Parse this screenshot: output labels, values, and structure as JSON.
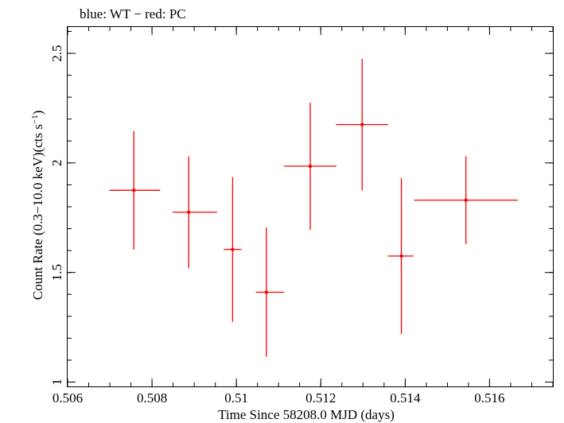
{
  "title": "blue: WT − red: PC",
  "chart_data": {
    "type": "scatter",
    "title": "blue: WT − red: PC",
    "xlabel": "Time Since 58208.0 MJD (days)",
    "ylabel_main": "Count Rate (0.3−10.0 keV)(cts s",
    "ylabel_sup": "−1",
    "ylabel_end": ")",
    "xlim": [
      0.506,
      0.5175
    ],
    "ylim": [
      0.98,
      2.62
    ],
    "log_y": false,
    "x_ticks": [
      {
        "value": 0.506,
        "label": "0.506"
      },
      {
        "value": 0.508,
        "label": "0.508"
      },
      {
        "value": 0.51,
        "label": "0.51"
      },
      {
        "value": 0.512,
        "label": "0.512"
      },
      {
        "value": 0.514,
        "label": "0.514"
      },
      {
        "value": 0.516,
        "label": "0.516"
      }
    ],
    "y_ticks": [
      {
        "value": 1,
        "label": "1"
      },
      {
        "value": 1.5,
        "label": "1.5"
      },
      {
        "value": 2,
        "label": "2"
      },
      {
        "value": 2.5,
        "label": "2.5"
      }
    ],
    "series": [
      {
        "color": "#ff0000",
        "points": [
          {
            "x": 0.50757,
            "xerr_lo": 0.00058,
            "xerr_hi": 0.00062,
            "y": 1.875,
            "yerr": 0.27
          },
          {
            "x": 0.50887,
            "xerr_lo": 0.00038,
            "xerr_hi": 0.00067,
            "y": 1.775,
            "yerr": 0.255
          },
          {
            "x": 0.50991,
            "xerr_lo": 0.00021,
            "xerr_hi": 0.00021,
            "y": 1.605,
            "yerr": 0.33
          },
          {
            "x": 0.51071,
            "xerr_lo": 0.00025,
            "xerr_hi": 0.00042,
            "y": 1.41,
            "yerr": 0.295
          },
          {
            "x": 0.51175,
            "xerr_lo": 0.00062,
            "xerr_hi": 0.00062,
            "y": 1.985,
            "yerr": 0.29
          },
          {
            "x": 0.51298,
            "xerr_lo": 0.00062,
            "xerr_hi": 0.00062,
            "y": 2.175,
            "yerr": 0.3
          },
          {
            "x": 0.51391,
            "xerr_lo": 0.00032,
            "xerr_hi": 0.00029,
            "y": 1.575,
            "yerr": 0.355
          },
          {
            "x": 0.51544,
            "xerr_lo": 0.00123,
            "xerr_hi": 0.00123,
            "y": 1.83,
            "yerr": 0.2
          }
        ]
      }
    ]
  }
}
